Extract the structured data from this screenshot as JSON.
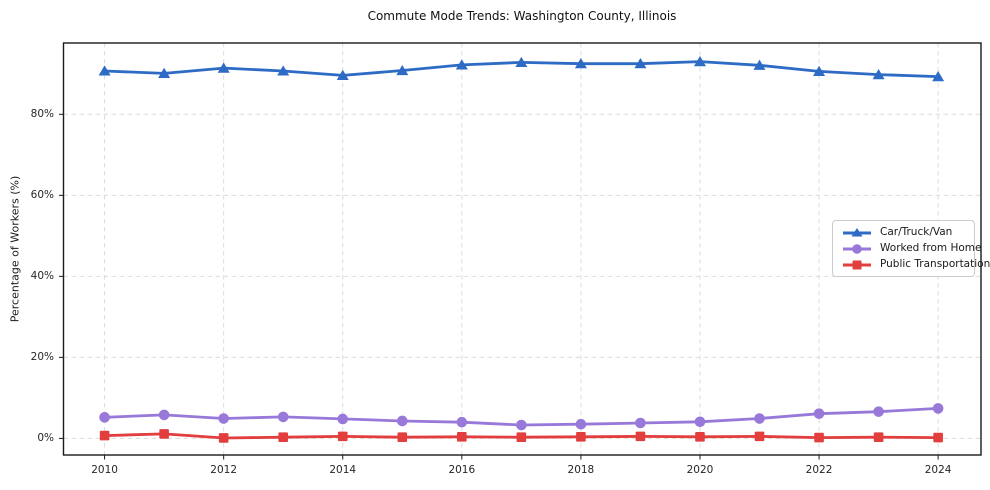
{
  "title": "Commute Mode Trends: Washington County, Illinois",
  "chart_data": {
    "type": "line",
    "title": "Commute Mode Trends: Washington County, Illinois",
    "xlabel": "",
    "ylabel": "Percentage of Workers (%)",
    "x": [
      2010,
      2011,
      2012,
      2013,
      2014,
      2015,
      2016,
      2017,
      2018,
      2019,
      2020,
      2021,
      2022,
      2023,
      2024
    ],
    "series": [
      {
        "name": "Car/Truck/Van",
        "color": "#2e6bc5",
        "marker": "triangle",
        "values": [
          90.7,
          90.1,
          91.4,
          90.7,
          89.6,
          90.8,
          92.2,
          92.8,
          92.5,
          92.5,
          93.0,
          92.1,
          90.6,
          89.8,
          89.3
        ]
      },
      {
        "name": "Worked from Home",
        "color": "#9878d9",
        "marker": "circle",
        "values": [
          5.2,
          5.8,
          4.9,
          5.3,
          4.8,
          4.3,
          4.0,
          3.3,
          3.5,
          3.8,
          4.1,
          4.9,
          6.1,
          6.6,
          7.4
        ]
      },
      {
        "name": "Public Transportation",
        "color": "#e23e3e",
        "marker": "square",
        "values": [
          0.7,
          1.1,
          0.1,
          0.3,
          0.5,
          0.3,
          0.4,
          0.3,
          0.4,
          0.5,
          0.4,
          0.5,
          0.2,
          0.3,
          0.2
        ]
      }
    ],
    "xticks": [
      "2010",
      "2012",
      "2014",
      "2016",
      "2018",
      "2020",
      "2022",
      "2024"
    ],
    "xtick_values": [
      2010,
      2012,
      2014,
      2016,
      2018,
      2020,
      2022,
      2024
    ],
    "yticks": [
      "0%",
      "20%",
      "40%",
      "60%",
      "80%"
    ],
    "ytick_values": [
      0,
      20,
      40,
      60,
      80
    ],
    "xlim": [
      2009.31,
      2024.72
    ],
    "ylim": [
      -4.1,
      97.6
    ],
    "grid": "dashed",
    "legend_position": "middle-right"
  }
}
